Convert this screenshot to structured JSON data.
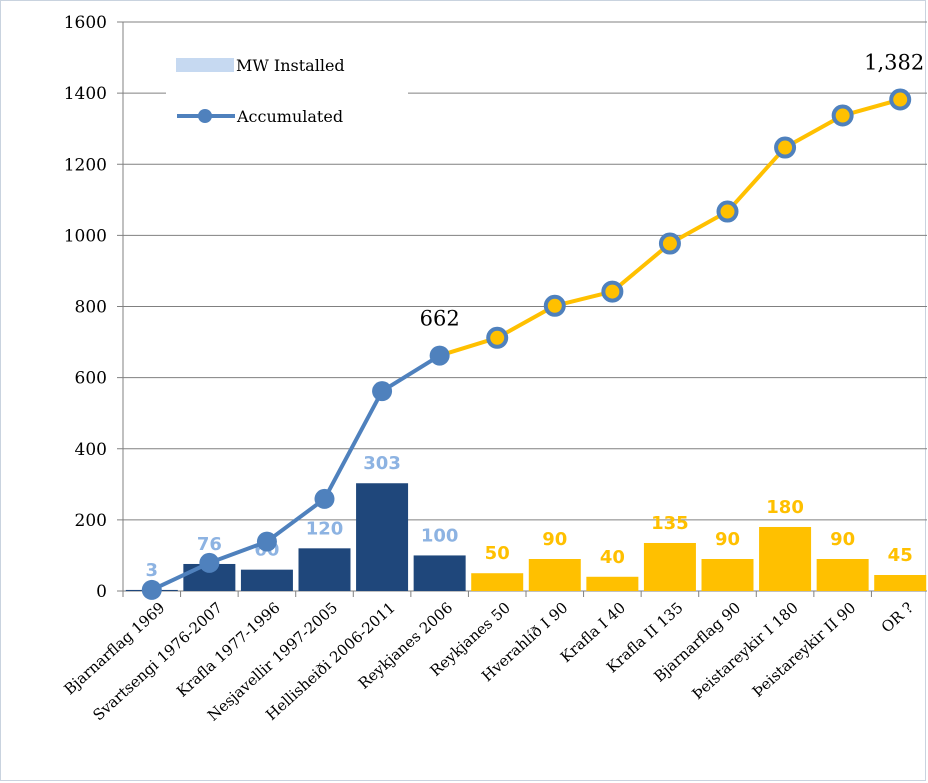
{
  "chart_data": {
    "type": "bar",
    "categories": [
      "Bjarnarflag 1969",
      "Svartsengi 1976-2007",
      "Krafla 1977-1996",
      "Nesjavellir 1997-2005",
      "Hellisheiði 2006-2011",
      "Reykjanes 2006",
      "Reykjanes 50",
      "Hverahlíð I 90",
      "Krafla I 40",
      "Krafla II 135",
      "Bjarnarflag 90",
      "Þeistareykir I 180",
      "Þeistareykir II 90",
      "OR ?"
    ],
    "series": [
      {
        "name": "MW Installed",
        "kind": "bar",
        "values": [
          3,
          76,
          60,
          120,
          303,
          100,
          50,
          90,
          40,
          135,
          90,
          180,
          90,
          45
        ],
        "labels": [
          "3",
          "76",
          "60",
          "120",
          "303",
          "100",
          "50",
          "90",
          "40",
          "135",
          "90",
          "180",
          "90",
          "45"
        ]
      },
      {
        "name": "Accumulated",
        "kind": "line",
        "values": [
          3,
          79,
          139,
          259,
          562,
          662,
          712,
          802,
          842,
          977,
          1067,
          1247,
          1337,
          1382
        ]
      }
    ],
    "existing_count": 6,
    "colors": {
      "bar_existing": "#1f477b",
      "bar_planned": "#ffc000",
      "label_existing": "#8db3e2",
      "label_planned": "#ffc000",
      "line_existing": "#4f81bd",
      "line_planned": "#ffc000",
      "marker_planned_center": "#ffc000",
      "legend_bar": "#c6d9f1",
      "grid": "#808080"
    },
    "annotations": [
      {
        "index": 5,
        "text": "662"
      },
      {
        "index": 13,
        "text": "1,382"
      }
    ],
    "yticks": [
      "0",
      "200",
      "400",
      "600",
      "800",
      "1000",
      "1200",
      "1400",
      "1600"
    ],
    "ylim": [
      0,
      1600
    ],
    "grid": true,
    "legend_position": "top-left"
  }
}
